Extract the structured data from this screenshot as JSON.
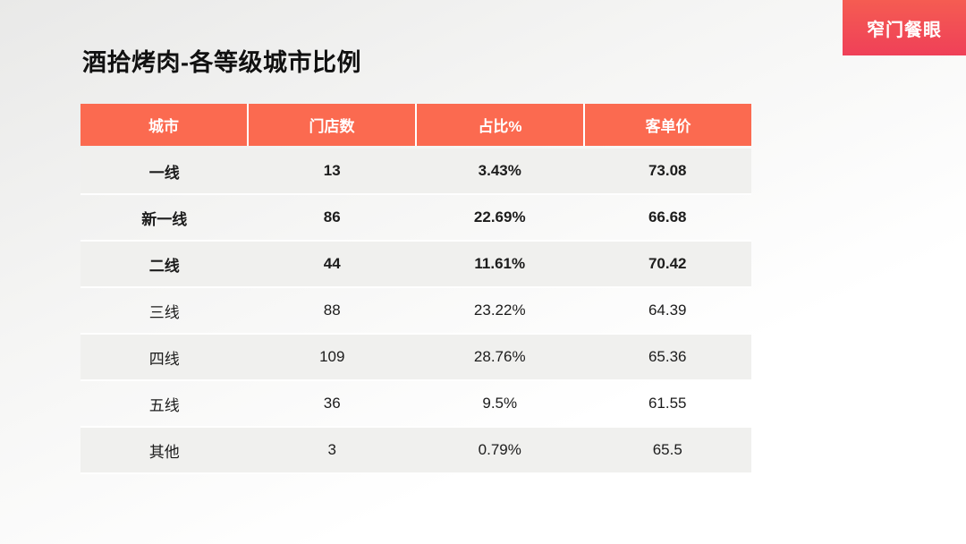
{
  "page": {
    "title": "酒拾烤肉-各等级城市比例",
    "badge_label": "窄门餐眼"
  },
  "colors": {
    "header_bg": "#fb6a50",
    "badge_gradient_top": "#f55c52",
    "badge_gradient_bottom": "#ef4058",
    "row_alt_bg": "#f0f0ee",
    "text": "#1c1c1c"
  },
  "table": {
    "columns": [
      "城市",
      "门店数",
      "占比%",
      "客单价"
    ],
    "rows": [
      {
        "city": "一线",
        "stores": "13",
        "share": "3.43%",
        "avg_price": "73.08"
      },
      {
        "city": "新一线",
        "stores": "86",
        "share": "22.69%",
        "avg_price": "66.68"
      },
      {
        "city": "二线",
        "stores": "44",
        "share": "11.61%",
        "avg_price": "70.42"
      },
      {
        "city": "三线",
        "stores": "88",
        "share": "23.22%",
        "avg_price": "64.39"
      },
      {
        "city": "四线",
        "stores": "109",
        "share": "28.76%",
        "avg_price": "65.36"
      },
      {
        "city": "五线",
        "stores": "36",
        "share": "9.5%",
        "avg_price": "61.55"
      },
      {
        "city": "其他",
        "stores": "3",
        "share": "0.79%",
        "avg_price": "65.5"
      }
    ]
  },
  "chart_data": {
    "type": "table",
    "title": "酒拾烤肉-各等级城市比例",
    "columns": [
      "城市",
      "门店数",
      "占比%",
      "客单价"
    ],
    "rows": [
      [
        "一线",
        13,
        "3.43%",
        73.08
      ],
      [
        "新一线",
        86,
        "22.69%",
        66.68
      ],
      [
        "二线",
        44,
        "11.61%",
        70.42
      ],
      [
        "三线",
        88,
        "23.22%",
        64.39
      ],
      [
        "四线",
        109,
        "28.76%",
        65.36
      ],
      [
        "五线",
        36,
        "9.5%",
        61.55
      ],
      [
        "其他",
        3,
        "0.79%",
        65.5
      ]
    ]
  }
}
